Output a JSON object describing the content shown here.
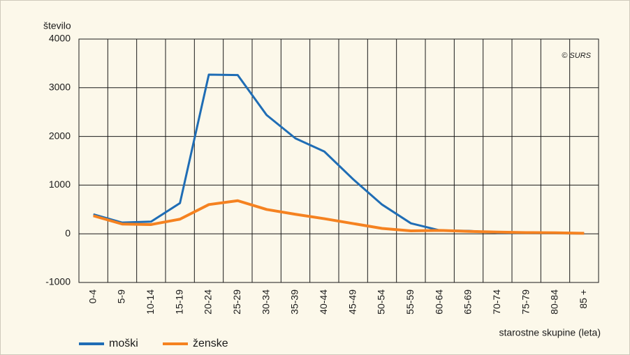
{
  "chart_data": {
    "type": "line",
    "y_label": "število",
    "x_label": "starostne skupine (leta)",
    "annotation": "© SURS",
    "categories": [
      "0-4",
      "5-9",
      "10-14",
      "15-19",
      "20-24",
      "25-29",
      "30-34",
      "35-39",
      "40-44",
      "45-49",
      "50-54",
      "55-59",
      "60-64",
      "65-69",
      "70-74",
      "75-79",
      "80-84",
      "85 +"
    ],
    "series": [
      {
        "name": "moški",
        "color": "#1f6db5",
        "values": [
          400,
          230,
          250,
          630,
          3270,
          3260,
          2440,
          1960,
          1690,
          1120,
          600,
          215,
          70,
          60,
          20,
          15,
          10,
          5
        ]
      },
      {
        "name": "ženske",
        "color": "#f58220",
        "values": [
          370,
          200,
          190,
          300,
          600,
          680,
          500,
          400,
          310,
          210,
          110,
          60,
          70,
          50,
          35,
          25,
          20,
          10
        ]
      }
    ],
    "ylim": [
      -1000,
      4000
    ],
    "yticks": [
      -1000,
      0,
      1000,
      2000,
      3000,
      4000
    ],
    "grid": true,
    "legend": "bottom-left"
  }
}
